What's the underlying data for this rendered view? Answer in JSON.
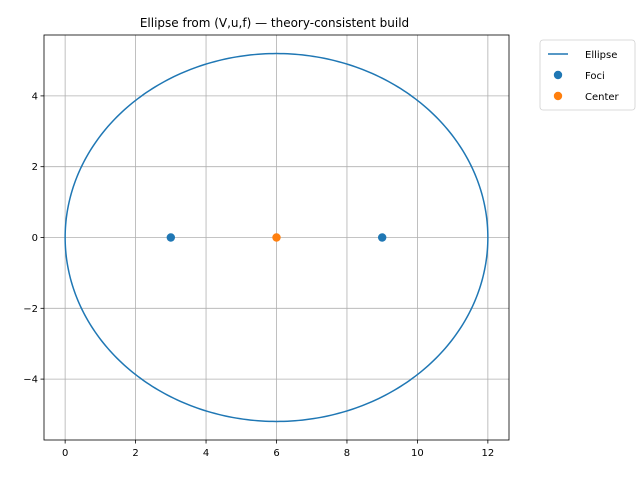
{
  "chart_data": {
    "type": "line",
    "title": "Ellipse from (V,u,f) — theory-consistent build",
    "xlabel": "",
    "ylabel": "",
    "xlim": [
      -0.6,
      12.6
    ],
    "ylim": [
      -5.72,
      5.72
    ],
    "x_ticks": [
      0,
      2,
      4,
      6,
      8,
      10,
      12
    ],
    "y_ticks": [
      -4,
      -2,
      0,
      2,
      4
    ],
    "grid": true,
    "legend_position": "outside-top-right",
    "series": [
      {
        "name": "Ellipse",
        "kind": "line",
        "color": "#1f77b4",
        "center": [
          6,
          0
        ],
        "semi_major": 6,
        "semi_minor": 5.196
      },
      {
        "name": "Foci",
        "kind": "scatter",
        "color": "#1f77b4",
        "x": [
          3,
          9
        ],
        "y": [
          0,
          0
        ]
      },
      {
        "name": "Center",
        "kind": "scatter",
        "color": "#ff7f0e",
        "x": [
          6
        ],
        "y": [
          0
        ]
      }
    ]
  }
}
